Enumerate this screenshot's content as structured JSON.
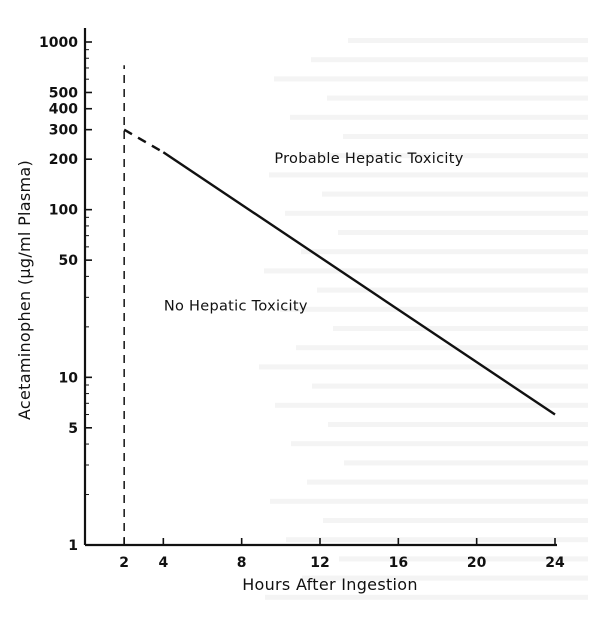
{
  "chart_data": {
    "type": "line",
    "title": "",
    "xlabel": "Hours After Ingestion",
    "ylabel": "Acetaminophen (µg/ml Plasma)",
    "x_scale": "linear",
    "y_scale": "log",
    "xlim": [
      0,
      24
    ],
    "ylim": [
      1,
      1000
    ],
    "x_ticks": [
      2,
      4,
      8,
      12,
      16,
      20,
      24
    ],
    "x_tick_labels": [
      "2",
      "4",
      "8",
      "12",
      "16",
      "20",
      "24"
    ],
    "y_ticks": [
      1,
      5,
      10,
      50,
      100,
      200,
      300,
      400,
      500,
      1000
    ],
    "y_tick_labels": [
      "1",
      "5",
      "10",
      "50",
      "100",
      "200",
      "300",
      "400",
      "500",
      "1000"
    ],
    "grid": false,
    "series": [
      {
        "style": "dashed",
        "x": [
          2,
          4
        ],
        "y": [
          300,
          220
        ]
      },
      {
        "style": "solid",
        "x": [
          4,
          24
        ],
        "y": [
          220,
          6
        ]
      }
    ],
    "reference_lines": [
      {
        "orientation": "vertical",
        "x": 2,
        "style": "dashed",
        "y_from": 1,
        "y_to": 600
      }
    ],
    "annotations": [
      {
        "text": "Probable Hepatic Toxicity",
        "x": 14.5,
        "y": 190
      },
      {
        "text": "No Hepatic Toxicity",
        "x": 7.7,
        "y": 25
      }
    ]
  }
}
